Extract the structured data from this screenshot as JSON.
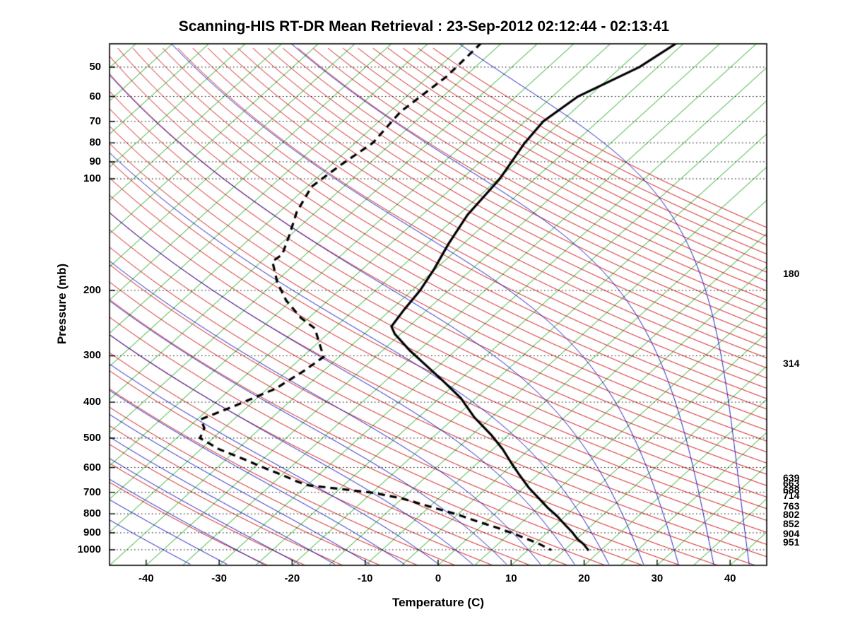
{
  "title": "Scanning-HIS RT-DR Mean Retrieval : 23-Sep-2012 02:12:44 - 02:13:41",
  "axes": {
    "x_label": "Temperature (C)",
    "y_label": "Pressure (mb)",
    "x_ticks": [
      -40,
      -30,
      -20,
      -10,
      0,
      10,
      20,
      30,
      40
    ],
    "pressure_ticks": [
      50,
      60,
      70,
      80,
      90,
      100,
      200,
      300,
      400,
      500,
      600,
      700,
      800,
      900,
      1000
    ]
  },
  "right_labels": [
    {
      "p": 180,
      "label": "180"
    },
    {
      "p": 314,
      "label": "314"
    },
    {
      "p": 639,
      "label": "639"
    },
    {
      "p": 663,
      "label": "663"
    },
    {
      "p": 688,
      "label": "688"
    },
    {
      "p": 714,
      "label": "714"
    },
    {
      "p": 763,
      "label": "763"
    },
    {
      "p": 802,
      "label": "802"
    },
    {
      "p": 852,
      "label": "852"
    },
    {
      "p": 904,
      "label": "904"
    },
    {
      "p": 951,
      "label": "951"
    }
  ],
  "colors": {
    "isotherm": "#00a000",
    "dry_adiabat": "#cc0000",
    "moist_adiabat": "#0000bb",
    "grid": "#000000",
    "profile": "#000000",
    "background": "#ffffff"
  },
  "chart_data": {
    "type": "line",
    "diagram": "skew-t-log-p",
    "title": "Scanning-HIS RT-DR Mean Retrieval : 23-Sep-2012 02:12:44 - 02:13:41",
    "xlabel": "Temperature (C)",
    "ylabel": "Pressure (mb)",
    "pressure_range_mb": [
      43,
      1100
    ],
    "temp_axis_range_c": [
      -45,
      45
    ],
    "grid": "dotted horizontal lines at labeled pressure levels",
    "background": {
      "isotherms_c": {
        "min": -125,
        "max": 45,
        "step": 5
      },
      "dry_adiabats_k": {
        "min": 243,
        "max": 473,
        "step": 5
      },
      "moist_adiabats_c": {
        "min": -40,
        "max": 40,
        "step": 5
      }
    },
    "series": [
      {
        "name": "temperature",
        "style": "solid",
        "units": [
          "pressure_mb",
          "temp_c"
        ],
        "points": [
          [
            43,
            -46.0
          ],
          [
            50,
            -47.5
          ],
          [
            60,
            -51.5
          ],
          [
            70,
            -52.5
          ],
          [
            80,
            -51.8
          ],
          [
            100,
            -49.8
          ],
          [
            125,
            -48.8
          ],
          [
            150,
            -47.0
          ],
          [
            175,
            -45.2
          ],
          [
            200,
            -43.9
          ],
          [
            225,
            -43.2
          ],
          [
            250,
            -42.4
          ],
          [
            262,
            -40.8
          ],
          [
            290,
            -36.3
          ],
          [
            315,
            -32.3
          ],
          [
            350,
            -27.2
          ],
          [
            390,
            -22.1
          ],
          [
            440,
            -17.3
          ],
          [
            490,
            -12.4
          ],
          [
            535,
            -8.7
          ],
          [
            585,
            -5.3
          ],
          [
            625,
            -2.7
          ],
          [
            680,
            0.7
          ],
          [
            725,
            3.6
          ],
          [
            770,
            6.3
          ],
          [
            810,
            8.8
          ],
          [
            855,
            11.2
          ],
          [
            895,
            13.3
          ],
          [
            935,
            15.1
          ],
          [
            965,
            16.7
          ],
          [
            1005,
            18.4
          ]
        ]
      },
      {
        "name": "dewpoint",
        "style": "dashed",
        "units": [
          "pressure_mb",
          "temp_c"
        ],
        "points": [
          [
            43,
            -72.8
          ],
          [
            53,
            -72.5
          ],
          [
            66,
            -73.5
          ],
          [
            80,
            -72.6
          ],
          [
            92,
            -73.7
          ],
          [
            105,
            -74.4
          ],
          [
            123,
            -72.6
          ],
          [
            143,
            -70.0
          ],
          [
            160,
            -68.2
          ],
          [
            167,
            -68.5
          ],
          [
            190,
            -64.7
          ],
          [
            213,
            -60.7
          ],
          [
            237,
            -56.1
          ],
          [
            253,
            -52.6
          ],
          [
            277,
            -49.8
          ],
          [
            302,
            -47.1
          ],
          [
            330,
            -47.7
          ],
          [
            368,
            -48.9
          ],
          [
            411,
            -52.0
          ],
          [
            445,
            -54.5
          ],
          [
            470,
            -52.7
          ],
          [
            500,
            -51.8
          ],
          [
            535,
            -47.6
          ],
          [
            570,
            -42.6
          ],
          [
            603,
            -38.3
          ],
          [
            630,
            -34.8
          ],
          [
            655,
            -31.9
          ],
          [
            670,
            -29.9
          ],
          [
            685,
            -25.1
          ],
          [
            703,
            -19.6
          ],
          [
            728,
            -14.9
          ],
          [
            767,
            -9.7
          ],
          [
            802,
            -5.2
          ],
          [
            838,
            -1.3
          ],
          [
            868,
            2.0
          ],
          [
            903,
            5.4
          ],
          [
            935,
            8.2
          ],
          [
            964,
            10.6
          ],
          [
            1002,
            13.2
          ]
        ]
      }
    ]
  }
}
